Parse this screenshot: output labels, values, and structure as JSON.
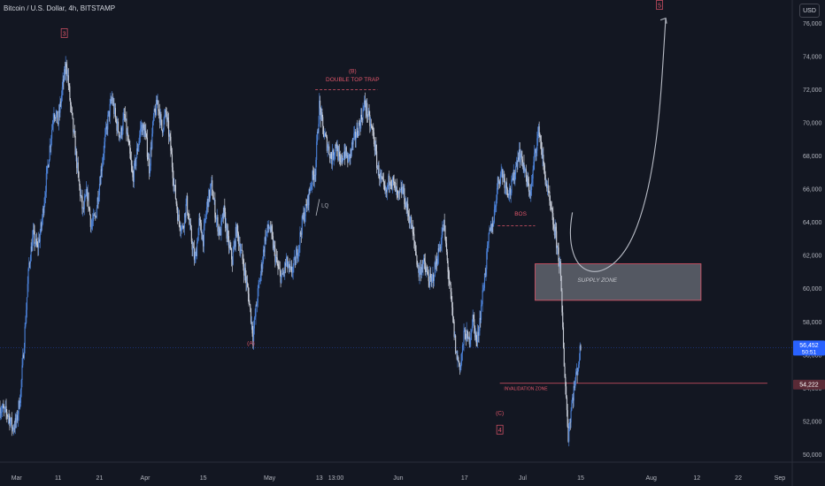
{
  "header": {
    "title": "Bitcoin / U.S. Dollar, 4h, BITSTAMP",
    "currency": "USD"
  },
  "colors": {
    "background": "#131722",
    "candle_up": "#4a7fd4",
    "candle_down": "#c8cdd8",
    "annotation": "#e0566a",
    "axis_text": "#b2b5be",
    "arrow": "#b8bcc6",
    "price_tag": "#2962ff",
    "level_tag": "#5a2a36",
    "zone_fill": "#8b8e97"
  },
  "chart_data": {
    "type": "candlestick",
    "symbol": "BTCUSD",
    "timeframe": "4h",
    "y_ticks": [
      "76,000",
      "74,000",
      "72,000",
      "70,000",
      "68,000",
      "66,000",
      "64,000",
      "62,000",
      "60,000",
      "58,000",
      "56,000",
      "54,000",
      "52,000",
      "50,000"
    ],
    "ylim": [
      49600,
      77400
    ],
    "x_ticks": [
      {
        "label": "Mar",
        "day": 29
      },
      {
        "label": "11",
        "day": 39
      },
      {
        "label": "21",
        "day": 49
      },
      {
        "label": "Apr",
        "day": 60
      },
      {
        "label": "15",
        "day": 74
      },
      {
        "label": "May",
        "day": 90
      },
      {
        "label": "13",
        "day": 102
      },
      {
        "label": "13:00",
        "day": 106
      },
      {
        "label": "Jun",
        "day": 121
      },
      {
        "label": "17",
        "day": 137
      },
      {
        "label": "Jul",
        "day": 151
      },
      {
        "label": "15",
        "day": 165
      },
      {
        "label": "Aug",
        "day": 182
      },
      {
        "label": "12",
        "day": 193
      },
      {
        "label": "22",
        "day": 203
      },
      {
        "label": "Sep",
        "day": 213
      }
    ],
    "xlim": [
      25,
      216
    ],
    "price_path": [
      [
        25,
        52800
      ],
      [
        27,
        52400
      ],
      [
        28,
        51600
      ],
      [
        29,
        52000
      ],
      [
        30,
        53800
      ],
      [
        31,
        57500
      ],
      [
        32,
        61500
      ],
      [
        33,
        63200
      ],
      [
        34,
        62400
      ],
      [
        35,
        63800
      ],
      [
        36,
        66200
      ],
      [
        37,
        68500
      ],
      [
        38,
        70800
      ],
      [
        39,
        70000
      ],
      [
        40,
        72000
      ],
      [
        41,
        73600
      ],
      [
        42,
        71000
      ],
      [
        43,
        68800
      ],
      [
        44,
        66400
      ],
      [
        45,
        64600
      ],
      [
        46,
        65800
      ],
      [
        47,
        63800
      ],
      [
        48,
        64300
      ],
      [
        49,
        66400
      ],
      [
        50,
        68400
      ],
      [
        51,
        70200
      ],
      [
        52,
        71500
      ],
      [
        53,
        70000
      ],
      [
        54,
        69200
      ],
      [
        55,
        70400
      ],
      [
        56,
        68600
      ],
      [
        57,
        66600
      ],
      [
        58,
        68200
      ],
      [
        59,
        69800
      ],
      [
        60,
        69400
      ],
      [
        61,
        67300
      ],
      [
        62,
        70200
      ],
      [
        63,
        71300
      ],
      [
        64,
        69600
      ],
      [
        65,
        70600
      ],
      [
        66,
        68800
      ],
      [
        67,
        66200
      ],
      [
        68,
        64200
      ],
      [
        69,
        63600
      ],
      [
        70,
        65200
      ],
      [
        71,
        63200
      ],
      [
        72,
        61600
      ],
      [
        73,
        64000
      ],
      [
        74,
        63000
      ],
      [
        75,
        65200
      ],
      [
        76,
        66200
      ],
      [
        77,
        64400
      ],
      [
        78,
        63300
      ],
      [
        79,
        64600
      ],
      [
        80,
        62800
      ],
      [
        81,
        61700
      ],
      [
        82,
        63600
      ],
      [
        83,
        62400
      ],
      [
        84,
        61000
      ],
      [
        85,
        59400
      ],
      [
        86,
        57200
      ],
      [
        87,
        59400
      ],
      [
        88,
        61200
      ],
      [
        89,
        63200
      ],
      [
        90,
        63800
      ],
      [
        91,
        62400
      ],
      [
        92,
        61200
      ],
      [
        93,
        60600
      ],
      [
        94,
        61600
      ],
      [
        95,
        60900
      ],
      [
        96,
        61500
      ],
      [
        97,
        62600
      ],
      [
        98,
        64200
      ],
      [
        99,
        65000
      ],
      [
        100,
        66400
      ],
      [
        101,
        67200
      ],
      [
        102,
        71000
      ],
      [
        103,
        69400
      ],
      [
        104,
        68600
      ],
      [
        105,
        67800
      ],
      [
        106,
        68800
      ],
      [
        107,
        67400
      ],
      [
        108,
        68300
      ],
      [
        109,
        67700
      ],
      [
        110,
        68700
      ],
      [
        111,
        69400
      ],
      [
        112,
        70200
      ],
      [
        113,
        71200
      ],
      [
        114,
        70100
      ],
      [
        115,
        69300
      ],
      [
        116,
        67300
      ],
      [
        117,
        66400
      ],
      [
        118,
        65600
      ],
      [
        119,
        66800
      ],
      [
        120,
        66200
      ],
      [
        121,
        65400
      ],
      [
        122,
        66000
      ],
      [
        123,
        64900
      ],
      [
        124,
        64000
      ],
      [
        125,
        62600
      ],
      [
        126,
        60900
      ],
      [
        127,
        61600
      ],
      [
        128,
        60800
      ],
      [
        129,
        60300
      ],
      [
        130,
        61400
      ],
      [
        131,
        62500
      ],
      [
        132,
        63900
      ],
      [
        133,
        61200
      ],
      [
        134,
        58600
      ],
      [
        135,
        56000
      ],
      [
        136,
        55300
      ],
      [
        137,
        57400
      ],
      [
        138,
        56800
      ],
      [
        139,
        58200
      ],
      [
        140,
        56700
      ],
      [
        141,
        58900
      ],
      [
        142,
        61100
      ],
      [
        143,
        63300
      ],
      [
        144,
        64200
      ],
      [
        145,
        66400
      ],
      [
        146,
        67100
      ],
      [
        147,
        66200
      ],
      [
        148,
        65800
      ],
      [
        149,
        66900
      ],
      [
        150,
        68200
      ],
      [
        151,
        67700
      ],
      [
        152,
        66400
      ],
      [
        153,
        65800
      ],
      [
        154,
        68300
      ],
      [
        155,
        69600
      ],
      [
        156,
        67400
      ],
      [
        157,
        65900
      ],
      [
        158,
        64400
      ],
      [
        159,
        63100
      ],
      [
        160,
        61400
      ],
      [
        161,
        55600
      ],
      [
        162,
        51200
      ],
      [
        163,
        53400
      ],
      [
        164,
        54900
      ],
      [
        165,
        56400
      ]
    ],
    "annotations": [
      {
        "text": "3",
        "style": "boxed",
        "day": 40.5,
        "price": 75300
      },
      {
        "text": "(B)",
        "style": "plain",
        "day": 110,
        "price": 73000
      },
      {
        "text": "DOUBLE TOP TRAP",
        "style": "plain",
        "day": 110,
        "price": 72500
      },
      {
        "text": "LQ",
        "style": "muted",
        "day": 102.5,
        "price": 64900
      },
      {
        "text": "BOS",
        "style": "plain",
        "day": 150.5,
        "price": 64400
      },
      {
        "text": "SUPPLY ZONE",
        "style": "zone",
        "day": 169,
        "price": 60400
      },
      {
        "text": "(A)",
        "style": "plain",
        "day": 85.5,
        "price": 56600
      },
      {
        "text": "INVALIDATION ZONE",
        "style": "small",
        "day": 146.5,
        "price": 53900
      },
      {
        "text": "(C)",
        "style": "plain",
        "day": 145.5,
        "price": 52400
      },
      {
        "text": "4",
        "style": "boxed",
        "day": 145.5,
        "price": 51400
      },
      {
        "text": "5",
        "style": "boxed",
        "day": 184,
        "price": 77000
      }
    ],
    "levels": [
      {
        "name": "double-top-trap",
        "price": 72000,
        "from_day": 101,
        "to_day": 116
      },
      {
        "name": "bos",
        "price": 63800,
        "from_day": 145,
        "to_day": 154
      },
      {
        "name": "invalidation-zone",
        "price": 54300,
        "from_day": 145.5,
        "to_day": 210
      }
    ],
    "supply_zone": {
      "price_top": 61500,
      "price_bottom": 59300,
      "from_day": 154,
      "to_day": 194
    },
    "price_labels": [
      {
        "text": "56,452",
        "sub": "50:51",
        "price": 56452,
        "style": "current"
      },
      {
        "text": "54,222",
        "price": 54222,
        "style": "level"
      }
    ]
  }
}
